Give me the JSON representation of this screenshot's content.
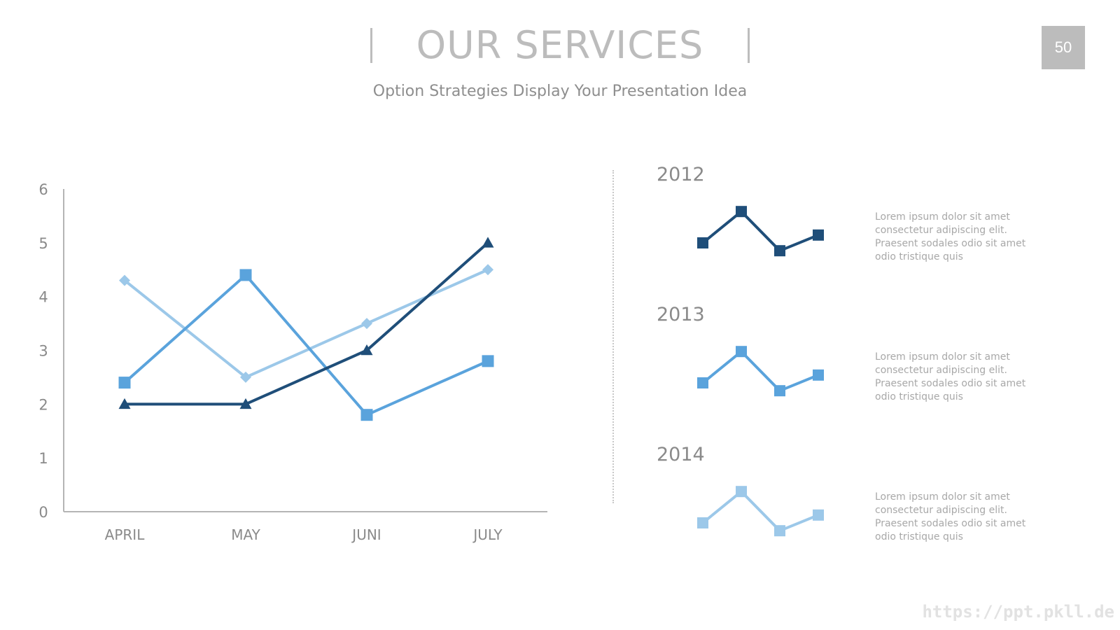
{
  "header": {
    "title": "OUR SERVICES",
    "subtitle": "Option Strategies Display Your Presentation Idea",
    "page_number": "50"
  },
  "colors": {
    "dark_blue": "#1f4e79",
    "mid_blue": "#5aa3dc",
    "light_blue": "#9cc8e9",
    "axis": "#b5b5b5",
    "tick_text": "#8a8a8a"
  },
  "chart_data": [
    {
      "type": "line",
      "categories": [
        "APRIL",
        "MAY",
        "JUNI",
        "JULY"
      ],
      "ylim": [
        0,
        6
      ],
      "yticks": [
        "0",
        "1",
        "2",
        "3",
        "4",
        "5",
        "6"
      ],
      "grid": false,
      "legend": "none",
      "series": [
        {
          "values": [
            4.3,
            2.5,
            3.5,
            4.5
          ],
          "marker": "diamond",
          "color": "#9cc8e9"
        },
        {
          "values": [
            2.4,
            4.4,
            1.8,
            2.8
          ],
          "marker": "square",
          "color": "#5aa3dc"
        },
        {
          "values": [
            2.0,
            2.0,
            3.0,
            5.0
          ],
          "marker": "triangle",
          "color": "#1f4e79"
        }
      ]
    },
    {
      "type": "line",
      "title": "2012",
      "values": [
        4.0,
        4.8,
        3.8,
        4.2
      ],
      "marker": "square",
      "color": "#1f4e79"
    },
    {
      "type": "line",
      "title": "2013",
      "values": [
        4.0,
        4.8,
        3.8,
        4.2
      ],
      "marker": "square",
      "color": "#5aa3dc"
    },
    {
      "type": "line",
      "title": "2014",
      "values": [
        4.0,
        4.8,
        3.8,
        4.2
      ],
      "marker": "square",
      "color": "#9cc8e9"
    }
  ],
  "descriptions": [
    {
      "lines": [
        "Lorem ipsum dolor sit amet",
        "consectetur adipiscing elit.",
        "Praesent sodales odio sit amet",
        "odio tristique quis"
      ]
    },
    {
      "lines": [
        "Lorem ipsum dolor sit amet",
        "consectetur adipiscing elit.",
        "Praesent sodales odio sit amet",
        "odio tristique quis"
      ]
    },
    {
      "lines": [
        "Lorem ipsum dolor sit amet",
        "consectetur adipiscing elit.",
        "Praesent sodales odio sit amet",
        "odio tristique quis"
      ]
    }
  ],
  "watermark": "https://ppt.pkll.de"
}
